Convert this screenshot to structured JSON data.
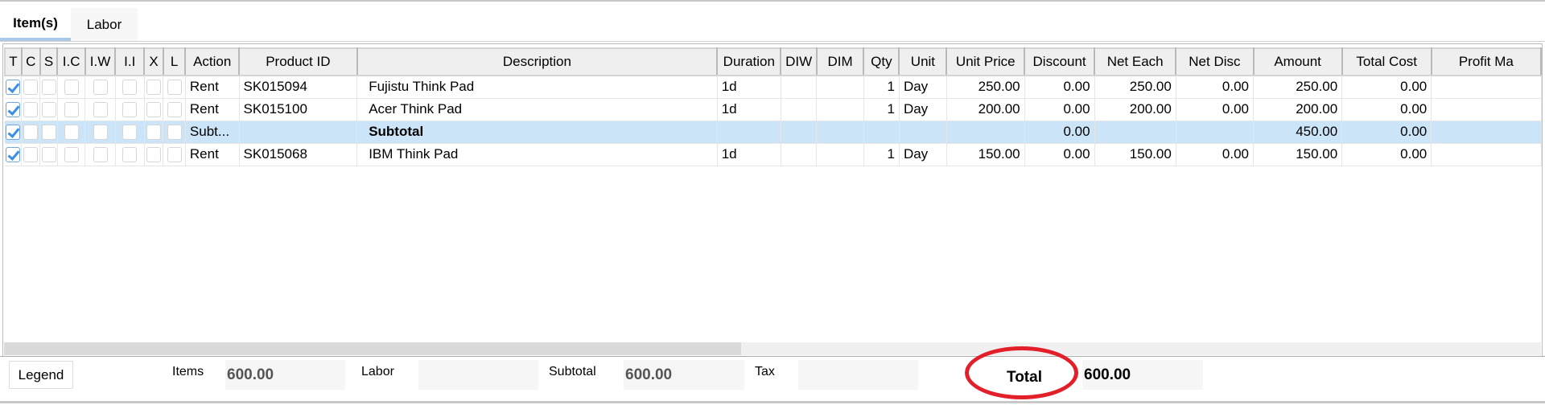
{
  "tabs": [
    {
      "label": "Item(s)",
      "active": true
    },
    {
      "label": "Labor",
      "active": false
    }
  ],
  "grid": {
    "columns": [
      "T",
      "C",
      "S",
      "I.C",
      "I.W",
      "I.I",
      "X",
      "L",
      "Action",
      "Product ID",
      "Description",
      "Duration",
      "DIW",
      "DIM",
      "Qty",
      "Unit",
      "Unit Price",
      "Discount",
      "Net Each",
      "Net Disc",
      "Amount",
      "Total Cost",
      "Profit Ma"
    ],
    "rows": [
      {
        "T": true,
        "C": false,
        "S": false,
        "I.C": false,
        "I.W": false,
        "I.I": false,
        "X": false,
        "L": false,
        "action": "Rent",
        "product_id": "SK015094",
        "description": "Fujistu Think Pad",
        "duration": "1d",
        "diw": "",
        "dim": "",
        "qty": "1",
        "unit": "Day",
        "unit_price": "250.00",
        "discount": "0.00",
        "net_each": "250.00",
        "net_disc": "0.00",
        "amount": "250.00",
        "total_cost": "0.00",
        "profit": "",
        "subtotal": false
      },
      {
        "T": true,
        "C": false,
        "S": false,
        "I.C": false,
        "I.W": false,
        "I.I": false,
        "X": false,
        "L": false,
        "action": "Rent",
        "product_id": "SK015100",
        "description": "Acer Think Pad",
        "duration": "1d",
        "diw": "",
        "dim": "",
        "qty": "1",
        "unit": "Day",
        "unit_price": "200.00",
        "discount": "0.00",
        "net_each": "200.00",
        "net_disc": "0.00",
        "amount": "200.00",
        "total_cost": "0.00",
        "profit": "",
        "subtotal": false
      },
      {
        "T": true,
        "C": false,
        "S": false,
        "I.C": false,
        "I.W": false,
        "I.I": false,
        "X": false,
        "L": false,
        "action": "Subt...",
        "product_id": "",
        "description": "Subtotal",
        "duration": "",
        "diw": "",
        "dim": "",
        "qty": "",
        "unit": "",
        "unit_price": "",
        "discount": "0.00",
        "net_each": "",
        "net_disc": "",
        "amount": "450.00",
        "total_cost": "0.00",
        "profit": "",
        "subtotal": true
      },
      {
        "T": true,
        "C": false,
        "S": false,
        "I.C": false,
        "I.W": false,
        "I.I": false,
        "X": false,
        "L": false,
        "action": "Rent",
        "product_id": "SK015068",
        "description": "IBM Think Pad",
        "duration": "1d",
        "diw": "",
        "dim": "",
        "qty": "1",
        "unit": "Day",
        "unit_price": "150.00",
        "discount": "0.00",
        "net_each": "150.00",
        "net_disc": "0.00",
        "amount": "150.00",
        "total_cost": "0.00",
        "profit": "",
        "subtotal": false
      }
    ]
  },
  "footer": {
    "legend_label": "Legend",
    "items_label": "Items",
    "items_value": "600.00",
    "labor_label": "Labor",
    "labor_value": "",
    "subtotal_label": "Subtotal",
    "subtotal_value": "600.00",
    "tax_label": "Tax",
    "tax_value": "",
    "total_label": "Total",
    "total_value": "600.00",
    "highlight_color": "#e3202a"
  }
}
